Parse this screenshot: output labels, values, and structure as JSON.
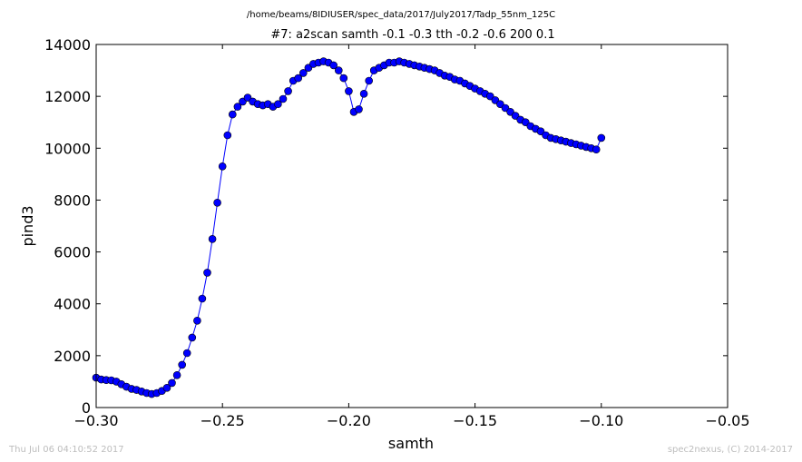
{
  "chart_data": {
    "type": "line",
    "suptitle": "/home/beams/8IDIUSER/spec_data/2017/July2017/Tadp_55nm_125C",
    "title": "#7: a2scan  samth -0.1 -0.3  tth -0.2 -0.6  200 0.1",
    "xlabel": "samth",
    "ylabel": "pind3",
    "xlim": [
      -0.3,
      -0.05
    ],
    "ylim": [
      0,
      14000
    ],
    "xticks": [
      -0.3,
      -0.25,
      -0.2,
      -0.15,
      -0.1,
      -0.05
    ],
    "xtick_labels": [
      "−0.30",
      "−0.25",
      "−0.20",
      "−0.15",
      "−0.10",
      "−0.05"
    ],
    "yticks": [
      0,
      2000,
      4000,
      6000,
      8000,
      10000,
      12000,
      14000
    ],
    "ytick_labels": [
      "0",
      "2000",
      "4000",
      "6000",
      "8000",
      "10000",
      "12000",
      "14000"
    ],
    "grid": false,
    "series": [
      {
        "color": "#0000ff",
        "marker": "circle",
        "x": [
          -0.3,
          -0.298,
          -0.296,
          -0.294,
          -0.292,
          -0.29,
          -0.288,
          -0.286,
          -0.284,
          -0.282,
          -0.28,
          -0.278,
          -0.276,
          -0.274,
          -0.272,
          -0.27,
          -0.268,
          -0.266,
          -0.264,
          -0.262,
          -0.26,
          -0.258,
          -0.256,
          -0.254,
          -0.252,
          -0.25,
          -0.248,
          -0.246,
          -0.244,
          -0.242,
          -0.24,
          -0.238,
          -0.236,
          -0.234,
          -0.232,
          -0.23,
          -0.228,
          -0.226,
          -0.224,
          -0.222,
          -0.22,
          -0.218,
          -0.216,
          -0.214,
          -0.212,
          -0.21,
          -0.208,
          -0.206,
          -0.204,
          -0.202,
          -0.2,
          -0.198,
          -0.196,
          -0.194,
          -0.192,
          -0.19,
          -0.188,
          -0.186,
          -0.184,
          -0.182,
          -0.18,
          -0.178,
          -0.176,
          -0.174,
          -0.172,
          -0.17,
          -0.168,
          -0.166,
          -0.164,
          -0.162,
          -0.16,
          -0.158,
          -0.156,
          -0.154,
          -0.152,
          -0.15,
          -0.148,
          -0.146,
          -0.144,
          -0.142,
          -0.14,
          -0.138,
          -0.136,
          -0.134,
          -0.132,
          -0.13,
          -0.128,
          -0.126,
          -0.124,
          -0.122,
          -0.12,
          -0.118,
          -0.116,
          -0.114,
          -0.112,
          -0.11,
          -0.108,
          -0.106,
          -0.104,
          -0.102,
          -0.1
        ],
        "y": [
          1150,
          1080,
          1060,
          1050,
          1000,
          900,
          800,
          720,
          680,
          620,
          560,
          520,
          560,
          640,
          760,
          950,
          1250,
          1650,
          2100,
          2700,
          3350,
          4200,
          5200,
          6500,
          7900,
          9300,
          10500,
          11300,
          11600,
          11800,
          11950,
          11800,
          11700,
          11650,
          11700,
          11600,
          11700,
          11900,
          12200,
          12600,
          12700,
          12900,
          13100,
          13250,
          13300,
          13350,
          13300,
          13200,
          13000,
          12700,
          12200,
          11400,
          11500,
          12100,
          12600,
          13000,
          13100,
          13200,
          13300,
          13300,
          13350,
          13300,
          13250,
          13200,
          13150,
          13100,
          13050,
          13000,
          12900,
          12800,
          12750,
          12650,
          12600,
          12500,
          12400,
          12300,
          12200,
          12100,
          12000,
          11850,
          11700,
          11550,
          11400,
          11250,
          11100,
          11000,
          10850,
          10750,
          10650,
          10500,
          10400,
          10350,
          10300,
          10250,
          10200,
          10150,
          10100,
          10050,
          10000,
          9950,
          10400
        ]
      }
    ]
  },
  "footer": {
    "timestamp": "Thu Jul 06 04:10:52 2017",
    "credit": "spec2nexus, (C) 2014-2017"
  }
}
